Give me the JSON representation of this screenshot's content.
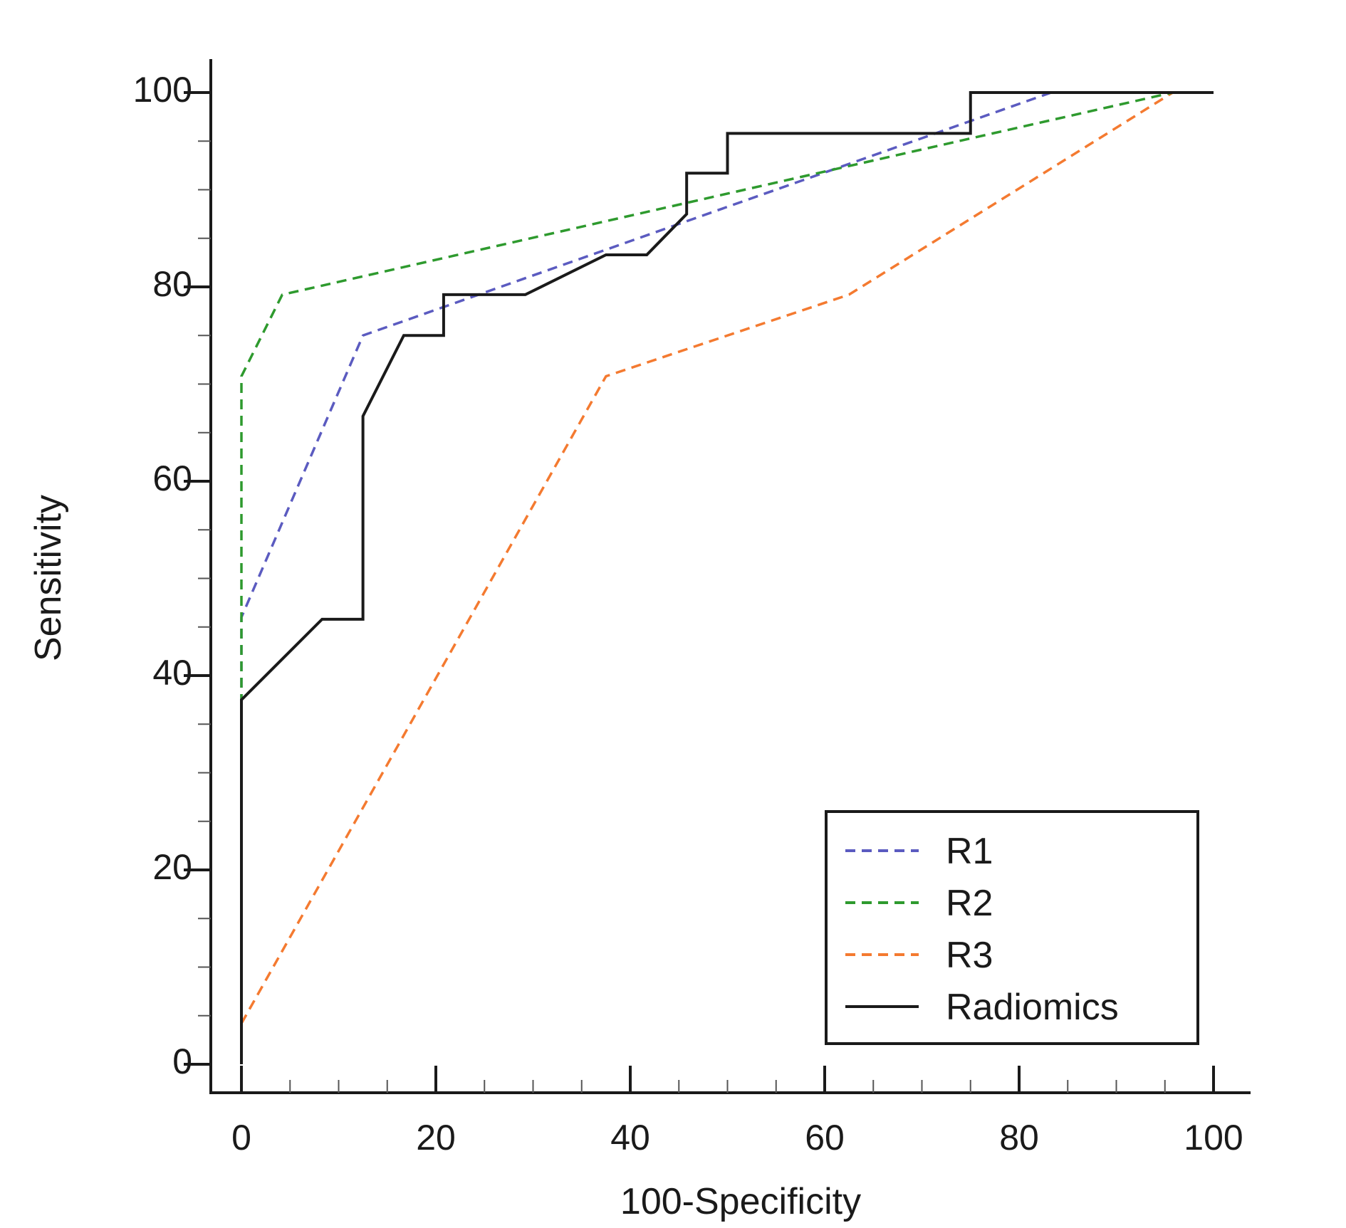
{
  "chart_data": {
    "type": "line",
    "title": "",
    "xlabel": "100-Specificity",
    "ylabel": "Sensitivity",
    "xlim": [
      0,
      100
    ],
    "ylim": [
      0,
      100
    ],
    "x_ticks": [
      "0",
      "20",
      "40",
      "60",
      "80",
      "100"
    ],
    "y_ticks": [
      "0",
      "20",
      "40",
      "60",
      "80",
      "100"
    ],
    "grid": false,
    "legend_position": "bottom-right",
    "series": [
      {
        "name": "R1",
        "color": "#5b5bc0",
        "dash": "dashed",
        "points": [
          [
            0,
            0
          ],
          [
            0,
            46
          ],
          [
            12.5,
            75
          ],
          [
            83.3,
            100
          ],
          [
            100,
            100
          ]
        ]
      },
      {
        "name": "R2",
        "color": "#2e9a2e",
        "dash": "dashed",
        "points": [
          [
            0,
            0
          ],
          [
            0,
            46
          ],
          [
            0,
            70.8
          ],
          [
            4.2,
            79.2
          ],
          [
            95.8,
            100
          ],
          [
            100,
            100
          ]
        ]
      },
      {
        "name": "R3",
        "color": "#f47a30",
        "dash": "dashed",
        "points": [
          [
            0,
            4.2
          ],
          [
            37.5,
            70.8
          ],
          [
            62.5,
            79.2
          ],
          [
            95.8,
            100
          ],
          [
            100,
            100
          ]
        ]
      },
      {
        "name": "Radiomics",
        "color": "#1a1a1a",
        "dash": "solid",
        "points": [
          [
            0,
            0
          ],
          [
            0,
            37.5
          ],
          [
            8.3,
            45.8
          ],
          [
            12.5,
            45.8
          ],
          [
            12.5,
            66.7
          ],
          [
            16.7,
            75
          ],
          [
            20.8,
            75
          ],
          [
            20.8,
            79.2
          ],
          [
            29.2,
            79.2
          ],
          [
            37.5,
            83.3
          ],
          [
            41.7,
            83.3
          ],
          [
            45.8,
            87.5
          ],
          [
            45.8,
            91.7
          ],
          [
            50,
            91.7
          ],
          [
            50,
            95.8
          ],
          [
            75,
            95.8
          ],
          [
            75,
            100
          ],
          [
            100,
            100
          ]
        ]
      }
    ]
  }
}
